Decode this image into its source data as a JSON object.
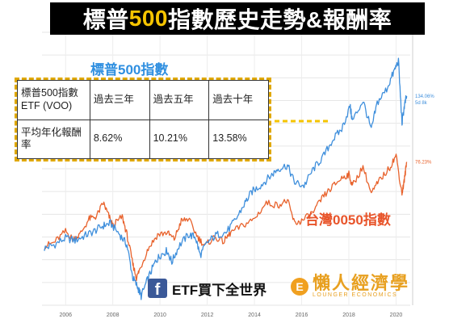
{
  "title": {
    "part1": "標普",
    "part2": "500",
    "part3": "指數歷史走勢&報酬率"
  },
  "watermark": "0050",
  "sp500_label": "標普500指數",
  "tw0050_label": "台灣0050指數",
  "table": {
    "header": [
      "標普500指數ETF (VOO)",
      "過去三年",
      "過去五年",
      "過去十年"
    ],
    "row_label": "平均年化報酬率",
    "row_values": [
      "8.62%",
      "10.21%",
      "13.58%"
    ]
  },
  "footer": {
    "fb_glyph": "f",
    "fb_text": "ETF買下全世界",
    "brand_glyph": "E",
    "brand_name": "懶人經濟學",
    "brand_sub": "LOUNGER ECONOMICS"
  },
  "colors": {
    "sp500": "#3f8fdc",
    "tw0050": "#e8622c",
    "accent": "#f5c400",
    "table_border": "#e0a800"
  },
  "chart_data": {
    "type": "line",
    "x_ticks": [
      "2006",
      "2008",
      "2010",
      "2012",
      "2014",
      "2016",
      "2018",
      "2020"
    ],
    "series": [
      {
        "name": "標普500指數",
        "color": "#3f8fdc",
        "end_label": "134.06%",
        "end_label2": "5d 8k",
        "points": [
          [
            2005.1,
            0
          ],
          [
            2005.5,
            3
          ],
          [
            2006.0,
            9
          ],
          [
            2006.4,
            7
          ],
          [
            2006.8,
            11
          ],
          [
            2007.2,
            15
          ],
          [
            2007.6,
            20
          ],
          [
            2007.9,
            22
          ],
          [
            2008.3,
            12
          ],
          [
            2008.6,
            3
          ],
          [
            2008.85,
            -26
          ],
          [
            2009.05,
            -34
          ],
          [
            2009.2,
            -42
          ],
          [
            2009.5,
            -26
          ],
          [
            2009.8,
            -12
          ],
          [
            2010.0,
            -6
          ],
          [
            2010.3,
            -2
          ],
          [
            2010.5,
            -12
          ],
          [
            2010.8,
            2
          ],
          [
            2011.2,
            12
          ],
          [
            2011.5,
            10
          ],
          [
            2011.7,
            -6
          ],
          [
            2012.0,
            5
          ],
          [
            2012.4,
            12
          ],
          [
            2012.8,
            14
          ],
          [
            2013.2,
            25
          ],
          [
            2013.6,
            40
          ],
          [
            2013.9,
            50
          ],
          [
            2014.3,
            56
          ],
          [
            2014.7,
            64
          ],
          [
            2015.0,
            70
          ],
          [
            2015.4,
            73
          ],
          [
            2015.7,
            58
          ],
          [
            2016.1,
            55
          ],
          [
            2016.5,
            70
          ],
          [
            2016.9,
            80
          ],
          [
            2017.3,
            95
          ],
          [
            2017.7,
            105
          ],
          [
            2018.05,
            125
          ],
          [
            2018.15,
            112
          ],
          [
            2018.6,
            130
          ],
          [
            2018.95,
            104
          ],
          [
            2019.2,
            128
          ],
          [
            2019.6,
            140
          ],
          [
            2019.9,
            155
          ],
          [
            2020.1,
            165
          ],
          [
            2020.25,
            110
          ],
          [
            2020.35,
            125
          ],
          [
            2020.45,
            134
          ]
        ]
      },
      {
        "name": "台灣0050指數",
        "color": "#e8622c",
        "end_label": "76.23%",
        "points": [
          [
            2005.1,
            2
          ],
          [
            2005.5,
            5
          ],
          [
            2006.0,
            15
          ],
          [
            2006.3,
            8
          ],
          [
            2006.6,
            12
          ],
          [
            2007.0,
            26
          ],
          [
            2007.3,
            28
          ],
          [
            2007.6,
            40
          ],
          [
            2007.8,
            30
          ],
          [
            2008.0,
            20
          ],
          [
            2008.4,
            28
          ],
          [
            2008.6,
            12
          ],
          [
            2008.85,
            -14
          ],
          [
            2009.0,
            -26
          ],
          [
            2009.15,
            -18
          ],
          [
            2009.5,
            0
          ],
          [
            2009.9,
            12
          ],
          [
            2010.3,
            14
          ],
          [
            2010.6,
            8
          ],
          [
            2010.9,
            24
          ],
          [
            2011.2,
            26
          ],
          [
            2011.6,
            10
          ],
          [
            2011.9,
            2
          ],
          [
            2012.3,
            10
          ],
          [
            2012.7,
            6
          ],
          [
            2013.0,
            14
          ],
          [
            2013.5,
            20
          ],
          [
            2014.0,
            26
          ],
          [
            2014.5,
            40
          ],
          [
            2015.0,
            38
          ],
          [
            2015.4,
            42
          ],
          [
            2015.7,
            22
          ],
          [
            2016.0,
            24
          ],
          [
            2016.5,
            32
          ],
          [
            2016.9,
            45
          ],
          [
            2017.3,
            54
          ],
          [
            2017.7,
            62
          ],
          [
            2018.0,
            65
          ],
          [
            2018.15,
            55
          ],
          [
            2018.6,
            72
          ],
          [
            2018.95,
            48
          ],
          [
            2019.3,
            60
          ],
          [
            2019.7,
            70
          ],
          [
            2020.0,
            82
          ],
          [
            2020.25,
            48
          ],
          [
            2020.35,
            60
          ],
          [
            2020.45,
            76
          ]
        ]
      }
    ],
    "xlim": [
      2005,
      2020.6
    ],
    "ylim": [
      -50,
      190
    ],
    "grid": true
  }
}
